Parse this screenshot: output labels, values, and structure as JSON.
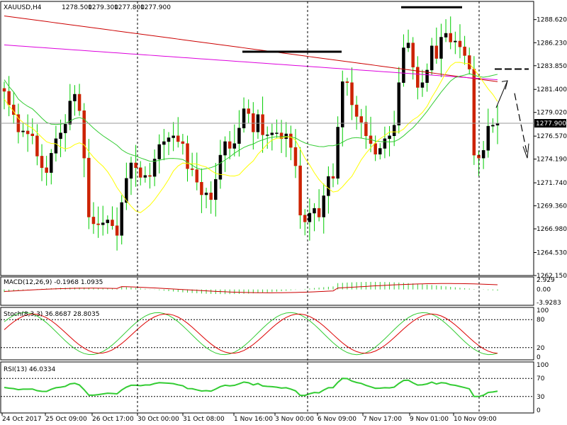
{
  "chart_data": [
    {
      "type": "candlestick",
      "title": "XAUUSD,H4",
      "ohlc_header": [
        "1278.500",
        "1279.300",
        "1277.800",
        "1277.900"
      ],
      "last_price_label": "1277.900",
      "ylim": [
        1262.15,
        1290.5
      ],
      "y_ticks": [
        "1288.620",
        "1286.230",
        "1283.850",
        "1281.400",
        "1279.020",
        "1276.570",
        "1274.190",
        "1271.740",
        "1269.360",
        "1266.980",
        "1264.530",
        "1262.150"
      ],
      "x_labels": [
        "24 Oct 2017",
        "25 Oct 09:00",
        "26 Oct 17:00",
        "30 Oct 00:00",
        "31 Oct 08:00",
        "1 Nov 16:00",
        "3 Nov 00:00",
        "6 Nov 09:00",
        "7 Nov 17:00",
        "9 Nov 01:00",
        "10 Nov 09:00"
      ],
      "candles_close": [
        1281.2,
        1279.8,
        1278.8,
        1277.0,
        1277.1,
        1276.8,
        1276.6,
        1274.5,
        1273.3,
        1272.8,
        1274.8,
        1276.3,
        1276.9,
        1277.8,
        1280.2,
        1280.9,
        1279.2,
        1274.3,
        1268.2,
        1267.5,
        1267.4,
        1267.6,
        1267.9,
        1267.3,
        1266.3,
        1269.7,
        1272.2,
        1273.8,
        1273.3,
        1272.3,
        1272.5,
        1272.4,
        1274.2,
        1275.7,
        1276.0,
        1276.4,
        1276.6,
        1276.0,
        1275.8,
        1273.2,
        1273.1,
        1271.8,
        1270.5,
        1270.7,
        1270.0,
        1272.1,
        1274.6,
        1276.0,
        1275.3,
        1275.8,
        1277.4,
        1279.4,
        1278.9,
        1277.0,
        1278.8,
        1276.7,
        1276.7,
        1276.9,
        1276.9,
        1276.3,
        1276.8,
        1275.4,
        1273.5,
        1268.4,
        1267.7,
        1268.6,
        1269.1,
        1268.2,
        1270.4,
        1272.4,
        1272.2,
        1277.5,
        1282.2,
        1282.1,
        1279.8,
        1278.6,
        1278.0,
        1276.6,
        1275.8,
        1274.7,
        1275.3,
        1276.3,
        1276.6,
        1277.7,
        1282.1,
        1285.7,
        1286.2,
        1283.7,
        1281.6,
        1282.1,
        1283.4,
        1285.9,
        1284.6,
        1286.8,
        1287.2,
        1286.3,
        1286.4,
        1285.8,
        1284.9,
        1283.5,
        1274.6,
        1274.3,
        1275.1,
        1277.6,
        1277.7,
        1277.9
      ],
      "series": [
        {
          "name": "MA red",
          "color": "#cc0000"
        },
        {
          "name": "MA magenta",
          "color": "#dd00dd"
        },
        {
          "name": "MA green",
          "color": "#33cc33"
        },
        {
          "name": "MA yellow",
          "color": "#ffff00"
        }
      ],
      "annotations": [
        "resistance line at 1285.3",
        "resistance line at 1289.9",
        "projection dashed line at 1283.5",
        "projection arrow down to 1274.5"
      ]
    },
    {
      "type": "line",
      "title": "MACD(12,26,9) -0.1968 1.0935",
      "y_ticks": [
        "2.929",
        "0.00",
        "-3.9283"
      ]
    },
    {
      "type": "line",
      "title": "Stoch(8,3,3) 36.8687 28.8035",
      "ylim": [
        0,
        100
      ],
      "y_ticks": [
        "100",
        "80",
        "20",
        "0"
      ]
    },
    {
      "type": "line",
      "title": "RSI(13) 46.0334",
      "ylim": [
        0,
        100
      ],
      "y_ticks": [
        "100",
        "70",
        "30",
        "0"
      ]
    }
  ],
  "colors": {
    "candle_up": "#000000",
    "candle_down": "#cc2200",
    "wick": "#00cc00",
    "grid": "#000000",
    "rsi": "#33cc33",
    "stoch_main": "#33cc33",
    "stoch_signal": "#dd0000",
    "macd_hist": "#33cc33",
    "macd_signal": "#cc0000",
    "yellow_ma": "#ffff00"
  }
}
